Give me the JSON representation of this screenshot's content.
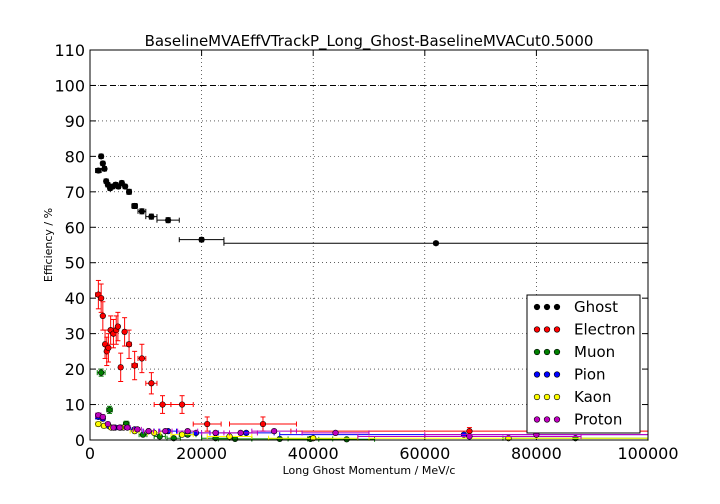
{
  "chart_data": {
    "type": "scatter",
    "title": "BaselineMVAEffVTrackP_Long_Ghost-BaselineMVACut0.5000",
    "xlabel": "Long Ghost Momentum / MeV/c",
    "ylabel": "Efficiency / %",
    "xlim": [
      0,
      100000
    ],
    "ylim": [
      0,
      110
    ],
    "xticks": [
      0,
      20000,
      40000,
      60000,
      80000,
      100000
    ],
    "xtick_labels": [
      "0",
      "20000",
      "40000",
      "60000",
      "80000",
      "100000"
    ],
    "yticks": [
      0,
      10,
      20,
      30,
      40,
      50,
      60,
      70,
      80,
      90,
      100,
      110
    ],
    "ytick_labels": [
      "0",
      "10",
      "20",
      "30",
      "40",
      "50",
      "60",
      "70",
      "80",
      "90",
      "100",
      "110"
    ],
    "grid": true,
    "reference_line": 100,
    "legend_position": "lower-right",
    "series": [
      {
        "name": "Ghost",
        "color": "#000000",
        "points": [
          {
            "x": 1500,
            "y": 76,
            "xerr": 500,
            "yerr": 0.6
          },
          {
            "x": 2000,
            "y": 80,
            "xerr": 250,
            "yerr": 0.6
          },
          {
            "x": 2300,
            "y": 78,
            "xerr": 250,
            "yerr": 0.6
          },
          {
            "x": 2600,
            "y": 76.5,
            "xerr": 250,
            "yerr": 0.6
          },
          {
            "x": 2900,
            "y": 73,
            "xerr": 250,
            "yerr": 0.6
          },
          {
            "x": 3200,
            "y": 72,
            "xerr": 250,
            "yerr": 0.6
          },
          {
            "x": 3600,
            "y": 71,
            "xerr": 250,
            "yerr": 0.6
          },
          {
            "x": 4100,
            "y": 71.5,
            "xerr": 250,
            "yerr": 0.6
          },
          {
            "x": 4600,
            "y": 72,
            "xerr": 250,
            "yerr": 0.6
          },
          {
            "x": 5100,
            "y": 71.5,
            "xerr": 250,
            "yerr": 0.6
          },
          {
            "x": 5700,
            "y": 72.5,
            "xerr": 300,
            "yerr": 0.6
          },
          {
            "x": 6300,
            "y": 71.5,
            "xerr": 300,
            "yerr": 0.6
          },
          {
            "x": 7000,
            "y": 70,
            "xerr": 400,
            "yerr": 0.7
          },
          {
            "x": 8000,
            "y": 66,
            "xerr": 500,
            "yerr": 0.7
          },
          {
            "x": 9300,
            "y": 64.5,
            "xerr": 700,
            "yerr": 0.7
          },
          {
            "x": 11000,
            "y": 63,
            "xerr": 1000,
            "yerr": 0.7
          },
          {
            "x": 14000,
            "y": 62,
            "xerr": 2000,
            "yerr": 0.7
          },
          {
            "x": 20000,
            "y": 56.5,
            "xerr": 4000,
            "yerr": 0.6
          },
          {
            "x": 62000,
            "y": 55.5,
            "xerr": 38000,
            "yerr": 0.5
          }
        ]
      },
      {
        "name": "Electron",
        "color": "#ff0000",
        "points": [
          {
            "x": 1500,
            "y": 41,
            "xerr": 500,
            "yerr": 4
          },
          {
            "x": 2000,
            "y": 40,
            "xerr": 250,
            "yerr": 4
          },
          {
            "x": 2300,
            "y": 35,
            "xerr": 250,
            "yerr": 4
          },
          {
            "x": 2700,
            "y": 27,
            "xerr": 250,
            "yerr": 4
          },
          {
            "x": 3000,
            "y": 25,
            "xerr": 250,
            "yerr": 4
          },
          {
            "x": 3300,
            "y": 26,
            "xerr": 250,
            "yerr": 4
          },
          {
            "x": 3700,
            "y": 31,
            "xerr": 250,
            "yerr": 4
          },
          {
            "x": 4200,
            "y": 30,
            "xerr": 250,
            "yerr": 4
          },
          {
            "x": 4700,
            "y": 31,
            "xerr": 250,
            "yerr": 4
          },
          {
            "x": 5000,
            "y": 32,
            "xerr": 250,
            "yerr": 4
          },
          {
            "x": 5500,
            "y": 20.5,
            "xerr": 300,
            "yerr": 4
          },
          {
            "x": 6200,
            "y": 30.5,
            "xerr": 300,
            "yerr": 4
          },
          {
            "x": 7000,
            "y": 27,
            "xerr": 400,
            "yerr": 4
          },
          {
            "x": 8000,
            "y": 21,
            "xerr": 500,
            "yerr": 4
          },
          {
            "x": 9300,
            "y": 23,
            "xerr": 700,
            "yerr": 4
          },
          {
            "x": 11000,
            "y": 16,
            "xerr": 1000,
            "yerr": 3
          },
          {
            "x": 13000,
            "y": 10,
            "xerr": 1500,
            "yerr": 2.5
          },
          {
            "x": 16500,
            "y": 10,
            "xerr": 2000,
            "yerr": 2.5
          },
          {
            "x": 21000,
            "y": 4.5,
            "xerr": 2500,
            "yerr": 2
          },
          {
            "x": 31000,
            "y": 4.5,
            "xerr": 6000,
            "yerr": 2
          },
          {
            "x": 68000,
            "y": 2.5,
            "xerr": 32000,
            "yerr": 1
          }
        ]
      },
      {
        "name": "Muon",
        "color": "#008000",
        "points": [
          {
            "x": 2000,
            "y": 19,
            "xerr": 700,
            "yerr": 1
          },
          {
            "x": 3500,
            "y": 8.5,
            "xerr": 500,
            "yerr": 1
          },
          {
            "x": 6500,
            "y": 4.5,
            "xerr": 500,
            "yerr": 0.8
          },
          {
            "x": 9500,
            "y": 1.5,
            "xerr": 700,
            "yerr": 0.5
          },
          {
            "x": 12500,
            "y": 1,
            "xerr": 1000,
            "yerr": 0.5
          },
          {
            "x": 15000,
            "y": 0.5,
            "xerr": 1200,
            "yerr": 0.4
          },
          {
            "x": 17500,
            "y": 1.5,
            "xerr": 1500,
            "yerr": 0.5
          },
          {
            "x": 22500,
            "y": 0.5,
            "xerr": 2500,
            "yerr": 0.4
          },
          {
            "x": 26000,
            "y": 0.3,
            "xerr": 3000,
            "yerr": 0.3
          },
          {
            "x": 34000,
            "y": 0.3,
            "xerr": 5000,
            "yerr": 0.3
          },
          {
            "x": 39500,
            "y": 0.3,
            "xerr": 4000,
            "yerr": 0.3
          },
          {
            "x": 46000,
            "y": 0.2,
            "xerr": 5000,
            "yerr": 0.3
          },
          {
            "x": 87000,
            "y": 0.5,
            "xerr": 13000,
            "yerr": 0.4
          }
        ]
      },
      {
        "name": "Pion",
        "color": "#0000ff",
        "points": [
          {
            "x": 1500,
            "y": 6.5,
            "xerr": 500,
            "yerr": 0.5
          },
          {
            "x": 2300,
            "y": 6,
            "xerr": 300,
            "yerr": 0.5
          },
          {
            "x": 3300,
            "y": 4,
            "xerr": 300,
            "yerr": 0.4
          },
          {
            "x": 4500,
            "y": 3.5,
            "xerr": 400,
            "yerr": 0.4
          },
          {
            "x": 6000,
            "y": 3.5,
            "xerr": 500,
            "yerr": 0.4
          },
          {
            "x": 8000,
            "y": 3,
            "xerr": 700,
            "yerr": 0.4
          },
          {
            "x": 10500,
            "y": 2.5,
            "xerr": 1000,
            "yerr": 0.4
          },
          {
            "x": 14000,
            "y": 2.5,
            "xerr": 1500,
            "yerr": 0.4
          },
          {
            "x": 19000,
            "y": 2,
            "xerr": 2500,
            "yerr": 0.4
          },
          {
            "x": 28000,
            "y": 2,
            "xerr": 5000,
            "yerr": 0.4
          },
          {
            "x": 67000,
            "y": 1.5,
            "xerr": 33000,
            "yerr": 0.3
          }
        ]
      },
      {
        "name": "Kaon",
        "color": "#ffff00",
        "points": [
          {
            "x": 1500,
            "y": 4.5,
            "xerr": 500,
            "yerr": 0.6
          },
          {
            "x": 2500,
            "y": 4,
            "xerr": 400,
            "yerr": 0.5
          },
          {
            "x": 3800,
            "y": 3.5,
            "xerr": 400,
            "yerr": 0.5
          },
          {
            "x": 5500,
            "y": 3.5,
            "xerr": 500,
            "yerr": 0.5
          },
          {
            "x": 8000,
            "y": 2.5,
            "xerr": 800,
            "yerr": 0.5
          },
          {
            "x": 11500,
            "y": 2,
            "xerr": 1200,
            "yerr": 0.4
          },
          {
            "x": 16500,
            "y": 1.5,
            "xerr": 2000,
            "yerr": 0.4
          },
          {
            "x": 25000,
            "y": 1,
            "xerr": 4000,
            "yerr": 0.4
          },
          {
            "x": 40000,
            "y": 0.5,
            "xerr": 8000,
            "yerr": 0.3
          },
          {
            "x": 75000,
            "y": 0.5,
            "xerr": 25000,
            "yerr": 0.3
          }
        ]
      },
      {
        "name": "Proton",
        "color": "#bf00bf",
        "points": [
          {
            "x": 1500,
            "y": 7,
            "xerr": 500,
            "yerr": 0.6
          },
          {
            "x": 2300,
            "y": 6.5,
            "xerr": 300,
            "yerr": 0.6
          },
          {
            "x": 3200,
            "y": 4.5,
            "xerr": 300,
            "yerr": 0.5
          },
          {
            "x": 4200,
            "y": 3.5,
            "xerr": 300,
            "yerr": 0.5
          },
          {
            "x": 5300,
            "y": 3.5,
            "xerr": 400,
            "yerr": 0.5
          },
          {
            "x": 6700,
            "y": 3.5,
            "xerr": 500,
            "yerr": 0.5
          },
          {
            "x": 8500,
            "y": 3,
            "xerr": 700,
            "yerr": 0.5
          },
          {
            "x": 10500,
            "y": 2.5,
            "xerr": 900,
            "yerr": 0.5
          },
          {
            "x": 13500,
            "y": 2.5,
            "xerr": 1200,
            "yerr": 0.5
          },
          {
            "x": 17500,
            "y": 2.5,
            "xerr": 1800,
            "yerr": 0.5
          },
          {
            "x": 22500,
            "y": 2,
            "xerr": 2500,
            "yerr": 0.5
          },
          {
            "x": 27000,
            "y": 2,
            "xerr": 3000,
            "yerr": 0.5
          },
          {
            "x": 33000,
            "y": 2.5,
            "xerr": 4000,
            "yerr": 0.5
          },
          {
            "x": 44000,
            "y": 2,
            "xerr": 6000,
            "yerr": 0.5
          },
          {
            "x": 68000,
            "y": 1,
            "xerr": 20000,
            "yerr": 0.4
          },
          {
            "x": 80000,
            "y": 1.5,
            "xerr": 20000,
            "yerr": 0.4
          }
        ]
      }
    ]
  }
}
